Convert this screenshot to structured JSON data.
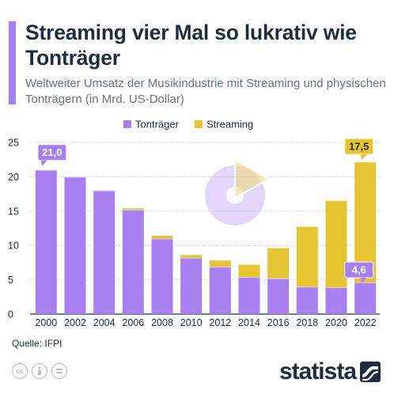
{
  "header": {
    "title": "Streaming vier Mal so lukrativ wie Tonträger",
    "subtitle": "Weltweiter Umsatz der Musikindustrie mit Streaming und physischen Tonträgern (in Mrd. US-Dollar)"
  },
  "footer": {
    "source": "Quelle: IFPI",
    "brand": "statista",
    "license_icons": [
      "cc-icon",
      "attribution-icon",
      "no-derivatives-icon"
    ]
  },
  "colors": {
    "physical": "#a87ff0",
    "streaming": "#e6c330",
    "text": "#1e2d3d",
    "grid": "#cfd3d7",
    "accent": "#a87ff0"
  },
  "chart_data": {
    "type": "bar",
    "stacked": true,
    "categories": [
      "2000",
      "2002",
      "2004",
      "2006",
      "2008",
      "2010",
      "2012",
      "2014",
      "2016",
      "2018",
      "2020",
      "2022"
    ],
    "series": [
      {
        "name": "Tonträger",
        "color": "#a87ff0",
        "values": [
          21.0,
          20.0,
          18.0,
          15.2,
          11.0,
          8.2,
          6.9,
          5.4,
          5.2,
          4.0,
          3.9,
          4.6
        ]
      },
      {
        "name": "Streaming",
        "color": "#e6c330",
        "values": [
          0.0,
          0.0,
          0.0,
          0.2,
          0.4,
          0.4,
          0.9,
          1.8,
          4.4,
          8.7,
          12.6,
          17.5
        ]
      }
    ],
    "ylim": [
      0,
      25
    ],
    "yticks": [
      0,
      5,
      10,
      15,
      20,
      25
    ],
    "grid": true,
    "legend": "top-center",
    "annotations": [
      {
        "category": "2000",
        "series": "Tonträger",
        "label": "21,0"
      },
      {
        "category": "2022",
        "series": "Tonträger",
        "label": "4,6"
      },
      {
        "category": "2022",
        "series": "Streaming",
        "label": "17,5"
      }
    ]
  }
}
